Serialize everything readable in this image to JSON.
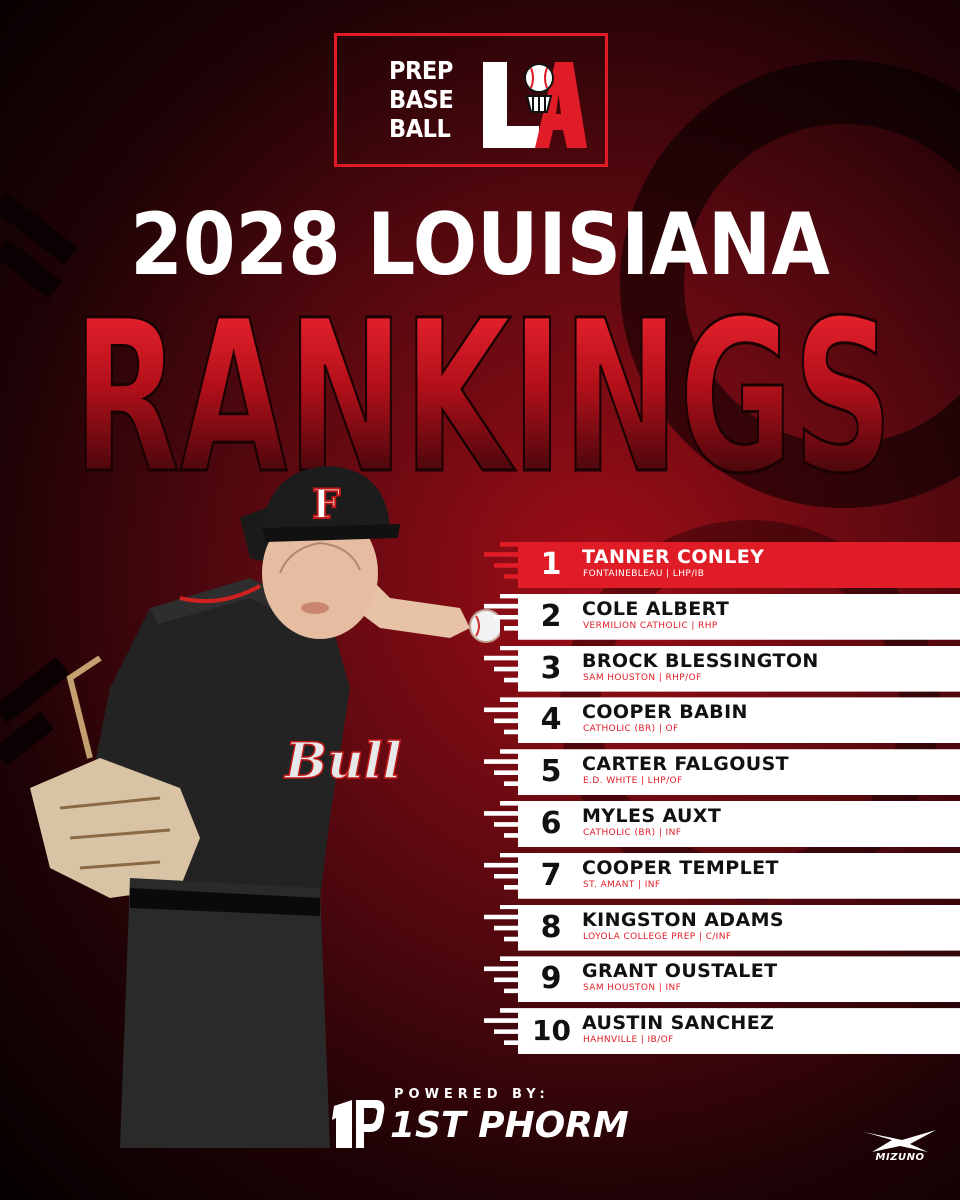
{
  "brand": {
    "logo_lines": [
      "PREP",
      "BASE",
      "BALL"
    ],
    "logo_mark": "LA",
    "accent_color": "#e01d27"
  },
  "header": {
    "title": "2028 LOUISIANA",
    "subtitle": "RANKINGS"
  },
  "rankings": [
    {
      "rank": "1",
      "name": "TANNER CONLEY",
      "detail": "FONTAINEBLEAU | LHP/IB"
    },
    {
      "rank": "2",
      "name": "COLE ALBERT",
      "detail": "VERMILION CATHOLIC | RHP"
    },
    {
      "rank": "3",
      "name": "BROCK BLESSINGTON",
      "detail": "SAM HOUSTON | RHP/OF"
    },
    {
      "rank": "4",
      "name": "COOPER BABIN",
      "detail": "CATHOLIC (BR) | OF"
    },
    {
      "rank": "5",
      "name": "CARTER FALGOUST",
      "detail": "E.D. WHITE | LHP/OF"
    },
    {
      "rank": "6",
      "name": "MYLES AUXT",
      "detail": "CATHOLIC (BR) | INF"
    },
    {
      "rank": "7",
      "name": "COOPER TEMPLET",
      "detail": "ST. AMANT | INF"
    },
    {
      "rank": "8",
      "name": "KINGSTON ADAMS",
      "detail": "LOYOLA COLLEGE PREP | C/INF"
    },
    {
      "rank": "9",
      "name": "GRANT OUSTALET",
      "detail": "SAM HOUSTON | INF"
    },
    {
      "rank": "10",
      "name": "AUSTIN SANCHEZ",
      "detail": "HAHNVILLE | IB/OF"
    }
  ],
  "footer": {
    "powered_by": "POWERED BY:",
    "sponsor": "1ST PHORM",
    "partner": "MIZUNO"
  },
  "photo": {
    "jersey_text": "Bull",
    "cap_letter": "F"
  }
}
